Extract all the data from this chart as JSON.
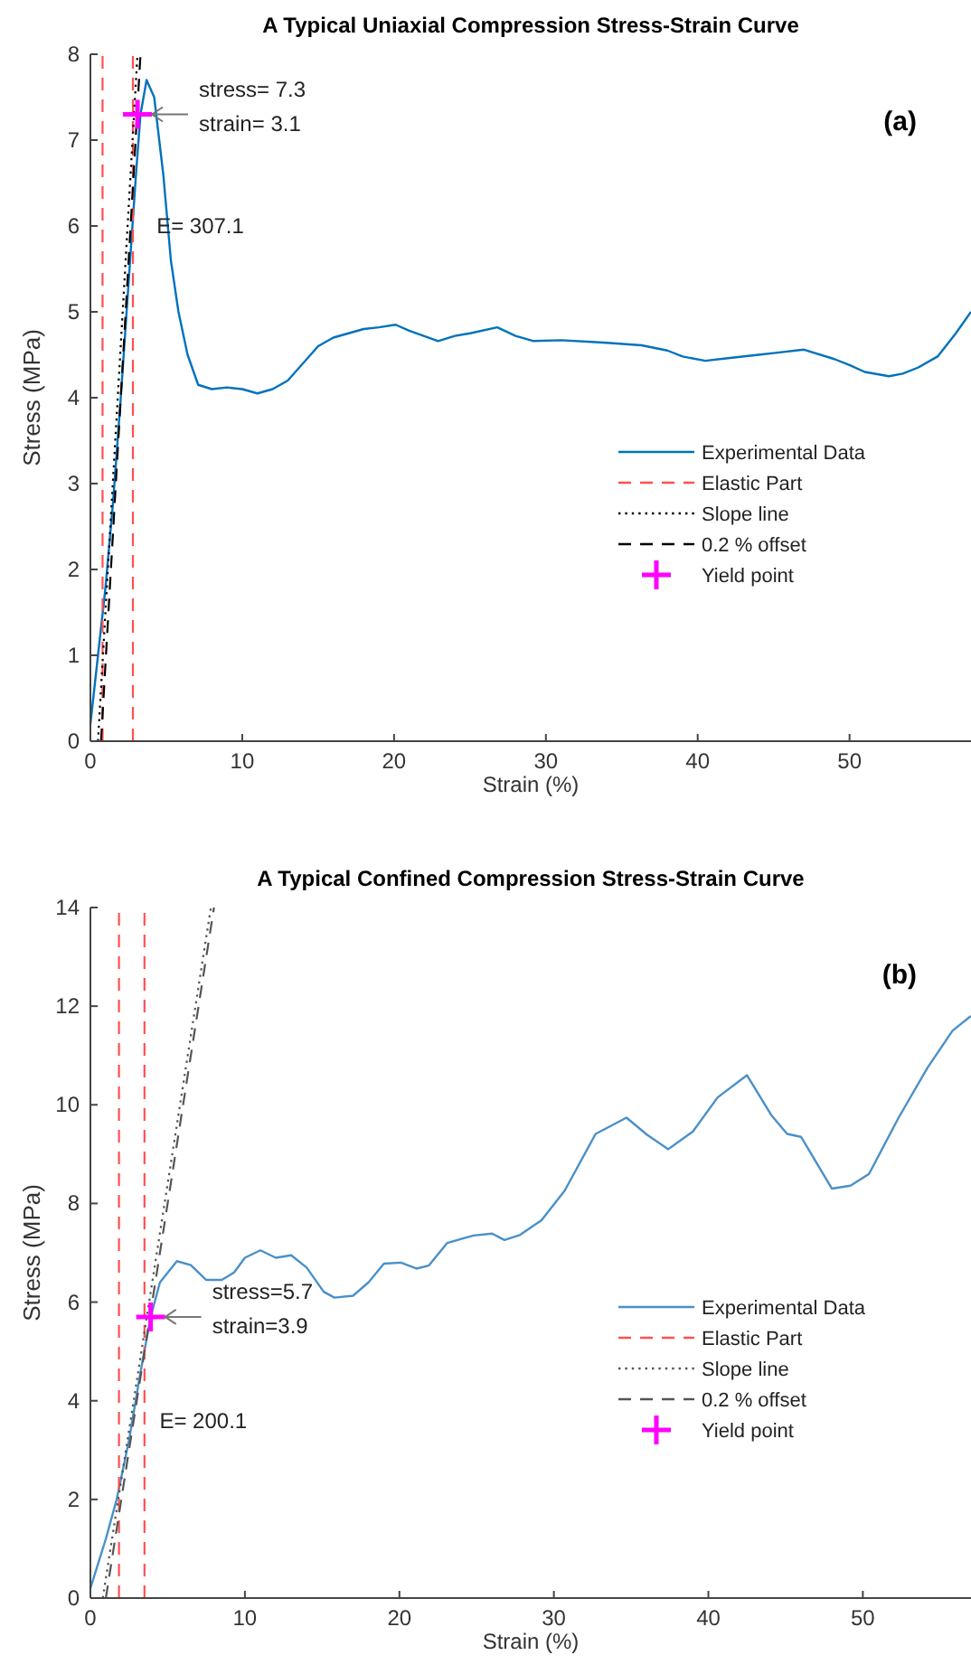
{
  "chart_data": [
    {
      "type": "line",
      "title": "A Typical Uniaxial Compression Stress-Strain Curve",
      "xlabel": "Strain (%)",
      "ylabel": "Stress (MPa)",
      "xlim": [
        0,
        58
      ],
      "ylim": [
        0,
        8
      ],
      "xticks": [
        0,
        10,
        20,
        30,
        40,
        50
      ],
      "yticks": [
        0,
        1,
        2,
        3,
        4,
        5,
        6,
        7,
        8
      ],
      "grid": false,
      "legend": "right",
      "series": [
        {
          "name": "Experimental Data",
          "type": "line",
          "color": "#0072bd",
          "line_style": "solid",
          "x": [
            0,
            0.5,
            1,
            1.5,
            2,
            2.5,
            3,
            3.3,
            3.7,
            4.2,
            4.8,
            5.3,
            5.8,
            6.4,
            7.1,
            8,
            9,
            10,
            11,
            12,
            13,
            14,
            15,
            16,
            17,
            18,
            19,
            20.1,
            21,
            22.9,
            24,
            25,
            26.8,
            28,
            29.2,
            31,
            33,
            34,
            36.3,
            38,
            39,
            40.5,
            42,
            44,
            45,
            47,
            49,
            50,
            51,
            52.6,
            53.5,
            54.5,
            55.8,
            57,
            58
          ],
          "values": [
            0.2,
            1.0,
            1.8,
            2.8,
            4.0,
            5.3,
            6.6,
            7.3,
            7.7,
            7.5,
            6.6,
            5.6,
            5.0,
            4.5,
            4.15,
            4.1,
            4.12,
            4.1,
            4.05,
            4.1,
            4.2,
            4.4,
            4.6,
            4.7,
            4.75,
            4.8,
            4.82,
            4.85,
            4.78,
            4.66,
            4.72,
            4.75,
            4.82,
            4.72,
            4.66,
            4.67,
            4.65,
            4.64,
            4.61,
            4.55,
            4.48,
            4.43,
            4.46,
            4.5,
            4.52,
            4.56,
            4.45,
            4.38,
            4.3,
            4.25,
            4.28,
            4.35,
            4.48,
            4.75,
            5.0
          ]
        },
        {
          "name": "Elastic Part",
          "type": "line",
          "color": "#ff5050",
          "line_style": "dashed",
          "x": [
            0.8,
            0.8
          ],
          "values": [
            0,
            8
          ]
        },
        {
          "type": "line",
          "color": "#ff5050",
          "line_style": "dashed",
          "x": [
            2.8,
            2.8
          ],
          "values": [
            0,
            8
          ]
        },
        {
          "name": "Slope line",
          "type": "line",
          "color": "#000000",
          "line_style": "dotted",
          "x": [
            0.5,
            3.1
          ],
          "values": [
            0,
            8
          ]
        },
        {
          "name": "0.2 % offset",
          "type": "line",
          "color": "#000000",
          "line_style": "dashed",
          "x": [
            0.7,
            3.3
          ],
          "values": [
            0,
            8
          ]
        },
        {
          "name": "Yield point",
          "type": "scatter",
          "marker": "cross",
          "color": "#ff00ff",
          "x": [
            3.1
          ],
          "values": [
            7.3
          ]
        }
      ],
      "annotations": [
        {
          "text": "stress= 7.3\nstrain= 3.1",
          "x": 3.1,
          "y": 7.3
        },
        {
          "text": "E= 307.1",
          "x": 2.45,
          "y": 6.0
        },
        "(a)"
      ]
    },
    {
      "type": "line",
      "title": "A Typical Confined Compression Stress-Strain Curve",
      "xlabel": "Strain (%)",
      "ylabel": "Stress (MPa)",
      "xlim": [
        0,
        57
      ],
      "ylim": [
        0,
        14
      ],
      "xticks": [
        0,
        10,
        20,
        30,
        40,
        50
      ],
      "yticks": [
        0,
        2,
        4,
        6,
        8,
        10,
        12,
        14
      ],
      "grid": false,
      "legend": "right",
      "series": [
        {
          "name": "Experimental Data",
          "type": "line",
          "color": "#4a90c8",
          "line_style": "solid",
          "x": [
            0,
            1,
            1.7,
            2.5,
            3.2,
            3.9,
            4.5,
            5.6,
            6.5,
            7.5,
            8.5,
            9.3,
            10,
            11,
            12,
            13,
            14,
            15.1,
            15.8,
            17,
            18,
            19,
            20.1,
            21.1,
            21.9,
            23.1,
            24.8,
            26,
            26.8,
            27.8,
            29.2,
            30.7,
            32.7,
            34.7,
            36,
            37.4,
            39,
            40.6,
            42.5,
            44.1,
            45.1,
            46,
            48,
            49.2,
            50.4,
            52.3,
            54.2,
            55.8,
            57
          ],
          "values": [
            0.2,
            1.2,
            2.0,
            3.2,
            4.5,
            5.7,
            6.4,
            6.83,
            6.75,
            6.45,
            6.45,
            6.6,
            6.9,
            7.05,
            6.9,
            6.95,
            6.7,
            6.21,
            6.09,
            6.13,
            6.4,
            6.78,
            6.8,
            6.68,
            6.74,
            7.2,
            7.35,
            7.39,
            7.26,
            7.36,
            7.66,
            8.26,
            9.41,
            9.74,
            9.4,
            9.1,
            9.46,
            10.15,
            10.6,
            9.78,
            9.41,
            9.35,
            8.3,
            8.36,
            8.6,
            9.73,
            10.76,
            11.5,
            11.8
          ]
        },
        {
          "name": "Elastic Part",
          "type": "line",
          "color": "#ff5050",
          "line_style": "dashed",
          "x": [
            1.85,
            1.85
          ],
          "values": [
            0,
            14
          ]
        },
        {
          "type": "line",
          "color": "#ff5050",
          "line_style": "dashed",
          "x": [
            3.5,
            3.5
          ],
          "values": [
            0,
            14
          ]
        },
        {
          "name": "Slope line",
          "type": "line",
          "color": "#555555",
          "line_style": "dotted",
          "x": [
            0.8,
            7.8
          ],
          "values": [
            0,
            14
          ]
        },
        {
          "name": "0.2 % offset",
          "type": "line",
          "color": "#555555",
          "line_style": "dashed",
          "x": [
            1.0,
            8.0
          ],
          "values": [
            0,
            14
          ]
        },
        {
          "name": "Yield point",
          "type": "scatter",
          "marker": "cross",
          "color": "#ff00ff",
          "x": [
            3.9
          ],
          "values": [
            5.7
          ]
        }
      ],
      "annotations": [
        {
          "text": "stress=5.7\nstrain=3.9",
          "x": 3.9,
          "y": 5.7
        },
        {
          "text": "E= 200.1",
          "x": 2.6,
          "y": 3.6
        },
        "(b)"
      ]
    }
  ]
}
